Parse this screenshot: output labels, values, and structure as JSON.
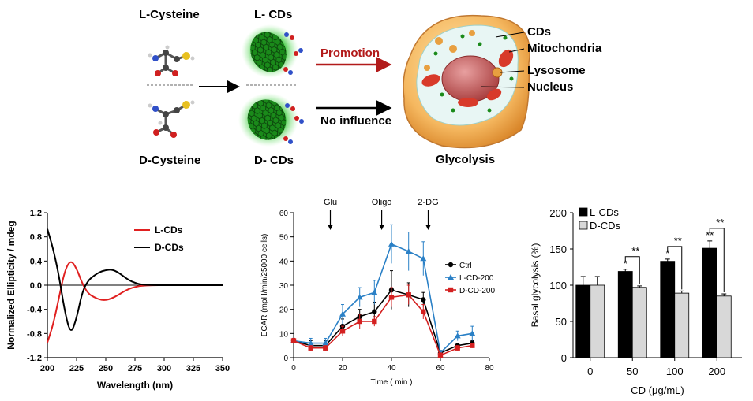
{
  "schematic": {
    "l_cysteine": "L-Cysteine",
    "d_cysteine": "D-Cysteine",
    "l_cds": "L- CDs",
    "d_cds": "D- CDs",
    "promotion": "Promotion",
    "no_influence": "No influence",
    "glycolysis": "Glycolysis",
    "cell_labels": [
      "CDs",
      "Mitochondria",
      "Lysosome",
      "Nucleus"
    ]
  },
  "chart_data": [
    {
      "type": "line",
      "xlabel": "Wavelength (nm)",
      "ylabel": "Normalized Ellipticity / mdeg",
      "xlim": [
        200,
        350
      ],
      "ylim": [
        -1.2,
        1.2
      ],
      "xticks": [
        "200",
        "225",
        "250",
        "275",
        "300",
        "325",
        "350"
      ],
      "yticks": [
        "1.2",
        "0.8",
        "0.4",
        "0.0",
        "-0.4",
        "-0.8",
        "-1.2"
      ],
      "legend_position": "top-right",
      "series": [
        {
          "name": "L-CDs",
          "color": "#e02020",
          "x": [
            200,
            205,
            210,
            215,
            220,
            225,
            230,
            235,
            240,
            245,
            250,
            255,
            260,
            265,
            270,
            275,
            280,
            290,
            300,
            310,
            350
          ],
          "y": [
            -0.95,
            -0.65,
            -0.2,
            0.25,
            0.42,
            0.28,
            0.02,
            -0.14,
            -0.2,
            -0.24,
            -0.25,
            -0.22,
            -0.17,
            -0.11,
            -0.06,
            -0.03,
            -0.01,
            0,
            0,
            0,
            0
          ]
        },
        {
          "name": "D-CDs",
          "color": "#000000",
          "x": [
            200,
            205,
            210,
            215,
            220,
            225,
            230,
            235,
            240,
            245,
            250,
            255,
            260,
            265,
            270,
            275,
            280,
            290,
            300,
            310,
            350
          ],
          "y": [
            0.93,
            0.6,
            0.15,
            -0.45,
            -0.82,
            -0.55,
            -0.1,
            0.08,
            0.16,
            0.22,
            0.25,
            0.26,
            0.22,
            0.15,
            0.08,
            0.04,
            0.01,
            0,
            0,
            0,
            0
          ]
        }
      ]
    },
    {
      "type": "line",
      "xlabel": "Time ( min )",
      "ylabel": "ECAR (mpH/min/25000 cells)",
      "xlim": [
        0,
        80
      ],
      "ylim": [
        0,
        60
      ],
      "xticks": [
        "0",
        "20",
        "40",
        "60",
        "80"
      ],
      "yticks": [
        "0",
        "10",
        "20",
        "30",
        "40",
        "50",
        "60"
      ],
      "annotations": [
        {
          "text": "Glu",
          "x": 15
        },
        {
          "text": "Oligo",
          "x": 36
        },
        {
          "text": "2-DG",
          "x": 55
        }
      ],
      "legend_position": "right",
      "series": [
        {
          "name": "Ctrl",
          "color": "#000000",
          "marker": "circle",
          "x": [
            0,
            7,
            13,
            20,
            27,
            33,
            40,
            47,
            53,
            60,
            67,
            73
          ],
          "y": [
            7,
            5,
            5,
            13,
            17,
            19,
            28,
            26,
            24,
            2,
            5,
            6
          ],
          "err": [
            1,
            2,
            2,
            3,
            3,
            4,
            8,
            5,
            3,
            1,
            1,
            1
          ]
        },
        {
          "name": "L-CD-200",
          "color": "#2a80c6",
          "marker": "triangle",
          "x": [
            0,
            7,
            13,
            20,
            27,
            33,
            40,
            47,
            53,
            60,
            67,
            73
          ],
          "y": [
            7,
            6,
            6,
            18,
            25,
            27,
            47,
            44,
            41,
            2,
            9,
            10
          ],
          "err": [
            1,
            2,
            2,
            4,
            4,
            5,
            8,
            8,
            7,
            1,
            2,
            3
          ]
        },
        {
          "name": "D-CD-200",
          "color": "#d42020",
          "marker": "square",
          "x": [
            0,
            7,
            13,
            20,
            27,
            33,
            40,
            47,
            53,
            60,
            67,
            73
          ],
          "y": [
            7,
            4,
            4,
            11,
            15,
            15,
            25,
            26,
            19,
            1,
            4,
            5
          ],
          "err": [
            1,
            1,
            1,
            2,
            3,
            2,
            4,
            4,
            3,
            1,
            1,
            1
          ]
        }
      ]
    },
    {
      "type": "bar",
      "xlabel": "CD (μg/mL)",
      "ylabel": "Basal glycolysis (%)",
      "categories": [
        "0",
        "50",
        "100",
        "200"
      ],
      "ylim": [
        0,
        200
      ],
      "yticks": [
        "0",
        "50",
        "100",
        "150",
        "200"
      ],
      "legend_position": "top-left",
      "series": [
        {
          "name": "L-CDs",
          "color": "#000000",
          "values": [
            100,
            119,
            133,
            151
          ],
          "err": [
            12,
            3,
            3,
            10
          ]
        },
        {
          "name": "D-CDs",
          "color": "#d8d8d8",
          "values": [
            100,
            97,
            89,
            85
          ],
          "err": [
            12,
            2,
            3,
            3
          ]
        }
      ],
      "significance": [
        {
          "category": "50",
          "single": "*",
          "pair": "**"
        },
        {
          "category": "100",
          "single": "*",
          "pair": "**"
        },
        {
          "category": "200",
          "single": "**",
          "pair": "**"
        }
      ]
    }
  ]
}
